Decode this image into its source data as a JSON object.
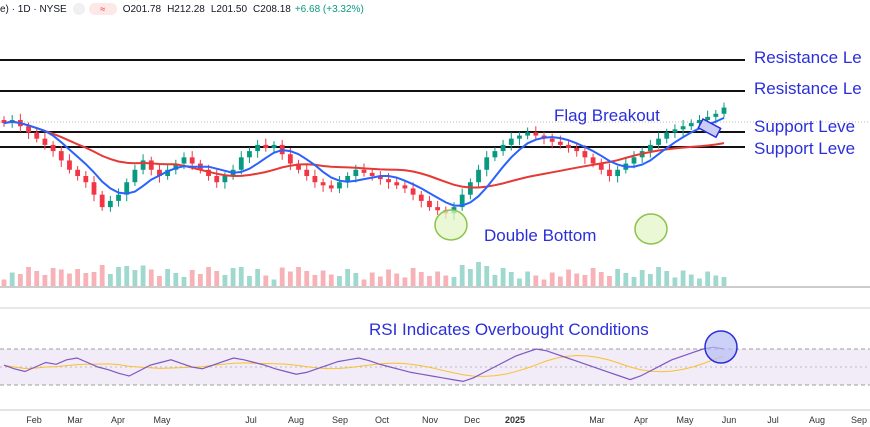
{
  "header": {
    "symbol_suffix": "e) · 1D · NYSE",
    "pill_label": "≈",
    "open": "O201.78",
    "high": "H212.28",
    "low": "L201.50",
    "close": "C208.18",
    "change": "+6.68 (+3.32%)"
  },
  "annotations": {
    "resistance_1": "Resistance Le",
    "resistance_2": "Resistance Le",
    "support_1": "Support Leve",
    "support_2": "Support Leve",
    "flag_breakout": "Flag Breakout",
    "double_bottom": "Double Bottom",
    "rsi_note": "RSI Indicates Overbought Conditions"
  },
  "colors": {
    "up": "#089981",
    "down": "#f23645",
    "ma_short": "#2962ff",
    "ma_long": "#e53935",
    "rsi_line": "#7e57c2",
    "rsi_ma": "#fbc02d",
    "annotation": "#2b2fd9",
    "circle_fill": "#e3f6c8",
    "circle_stroke": "#8bc34a"
  },
  "chart_data": {
    "type": "candlestick",
    "x_axis_labels": [
      "Feb",
      "Mar",
      "Apr",
      "May",
      "Jul",
      "Aug",
      "Sep",
      "Oct",
      "Nov",
      "Dec",
      "2025",
      "Mar",
      "Apr",
      "May",
      "Jun",
      "Jul",
      "Aug",
      "Sep"
    ],
    "price_series": {
      "close_path": [
        175,
        176,
        174,
        172,
        170,
        168,
        166,
        163,
        160,
        158,
        156,
        152,
        148,
        150,
        152,
        156,
        160,
        163,
        160,
        158,
        160,
        162,
        164,
        162,
        160,
        158,
        156,
        158,
        160,
        164,
        166,
        168,
        167,
        168,
        165,
        162,
        160,
        158,
        156,
        155,
        154,
        156,
        158,
        160,
        159,
        158,
        157,
        156,
        155,
        154,
        152,
        150,
        148,
        147,
        146,
        148,
        152,
        156,
        160,
        164,
        166,
        168,
        170,
        171,
        172,
        171,
        170,
        169,
        168,
        167,
        166,
        164,
        162,
        160,
        158,
        160,
        162,
        164,
        166,
        168,
        170,
        172,
        173,
        174,
        175,
        176,
        177,
        178,
        180
      ]
    },
    "resistance_levels": [
      "Resistance Le",
      "Resistance Le"
    ],
    "support_levels": [
      "Support Leve",
      "Support Leve"
    ],
    "rsi": {
      "upper_band": 70,
      "lower_band": 30,
      "values": [
        52,
        48,
        45,
        50,
        55,
        53,
        58,
        60,
        55,
        50,
        47,
        43,
        40,
        46,
        52,
        55,
        58,
        54,
        50,
        48,
        52,
        56,
        60,
        58,
        55,
        52,
        48,
        45,
        42,
        44,
        48,
        52,
        56,
        58,
        60,
        57,
        53,
        50,
        47,
        44,
        42,
        40,
        38,
        36,
        34,
        38,
        44,
        50,
        56,
        62,
        66,
        70,
        68,
        64,
        60,
        56,
        52,
        48,
        44,
        40,
        36,
        40,
        46,
        52,
        58,
        62,
        66,
        70,
        72,
        70
      ]
    }
  }
}
